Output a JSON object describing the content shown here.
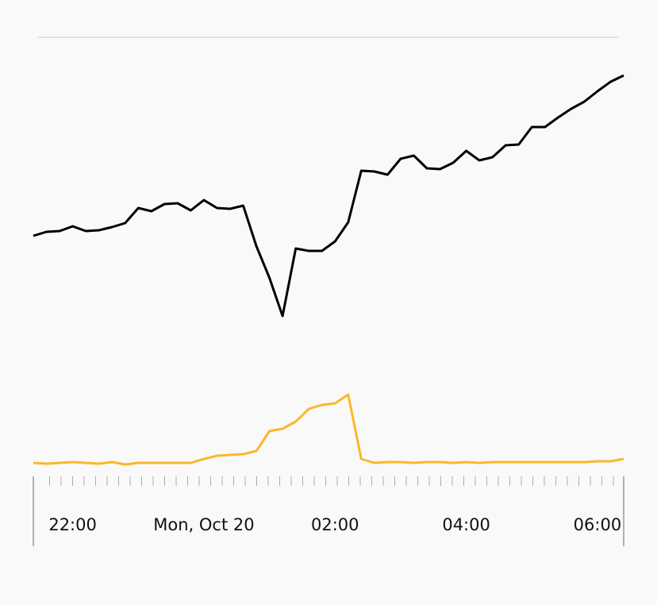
{
  "chart_data": {
    "type": "line",
    "x": [
      21.4,
      21.6,
      21.8,
      22.0,
      22.2,
      22.4,
      22.6,
      22.8,
      23.0,
      23.2,
      23.4,
      23.6,
      23.8,
      24.0,
      24.2,
      24.4,
      24.6,
      24.8,
      25.0,
      25.2,
      25.4,
      25.6,
      25.8,
      26.0,
      26.2,
      26.4,
      26.6,
      26.8,
      27.0,
      27.2,
      27.4,
      27.6,
      27.8,
      28.0,
      28.2,
      28.4,
      28.6,
      28.8,
      29.0,
      29.2,
      29.4,
      29.6,
      29.8,
      30.0,
      30.2,
      30.4
    ],
    "xlim": [
      21.4,
      30.4
    ],
    "xticks": [
      {
        "value": 22,
        "label": "22:00"
      },
      {
        "value": 24,
        "label": "Mon, Oct 20"
      },
      {
        "value": 26,
        "label": "02:00"
      },
      {
        "value": 28,
        "label": "04:00"
      },
      {
        "value": 30,
        "label": "06:00"
      }
    ],
    "ylim": [
      0,
      560
    ],
    "series": [
      {
        "color": "#000000",
        "values": [
          303,
          308,
          309,
          315,
          309,
          310,
          314,
          319,
          338,
          334,
          343,
          344,
          335,
          348,
          338,
          337,
          341,
          290,
          250,
          202,
          287,
          284,
          284,
          296,
          320,
          385,
          384,
          380,
          400,
          404,
          388,
          387,
          395,
          410,
          398,
          402,
          417,
          418,
          440,
          440,
          452,
          463,
          472,
          485,
          497,
          505
        ]
      },
      {
        "color": "#fbb829",
        "values": [
          17,
          16,
          17,
          18,
          17,
          16,
          18,
          15,
          17,
          17,
          17,
          17,
          17,
          22,
          26,
          27,
          28,
          32,
          57,
          60,
          69,
          85,
          90,
          92,
          103,
          22,
          17,
          18,
          18,
          17,
          18,
          18,
          17,
          18,
          17,
          18,
          18,
          18,
          18,
          18,
          18,
          18,
          18,
          19,
          19,
          22
        ]
      }
    ]
  }
}
